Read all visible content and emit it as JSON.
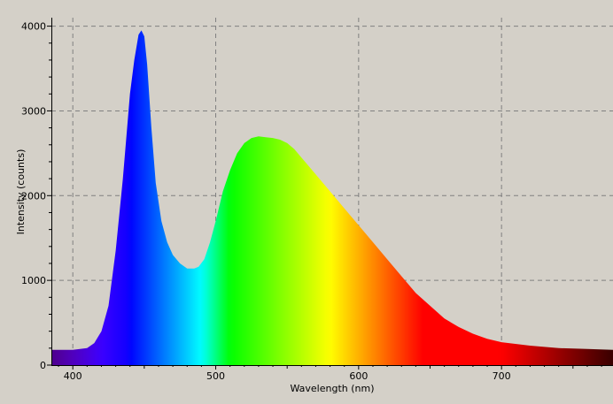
{
  "colors": {
    "background": "#d4d0c8",
    "axis": "#000000",
    "grid": "#808080"
  },
  "chart_data": {
    "type": "area",
    "title": "",
    "xlabel": "Wavelength (nm)",
    "ylabel": "Intensity (counts)",
    "xlim": [
      385,
      778
    ],
    "ylim": [
      0,
      4100
    ],
    "xticks": [
      400,
      500,
      600,
      700
    ],
    "yticks": [
      0,
      1000,
      2000,
      3000,
      4000
    ],
    "grid": true,
    "fill": "spectral wavelength color",
    "series": [
      {
        "x": [
          385,
          400,
          410,
          415,
          420,
          425,
          430,
          435,
          440,
          443,
          446,
          448,
          450,
          452,
          455,
          458,
          462,
          466,
          470,
          475,
          480,
          485,
          488,
          492,
          496,
          500,
          505,
          510,
          515,
          520,
          525,
          530,
          535,
          540,
          545,
          550,
          555,
          560,
          565,
          570,
          575,
          580,
          590,
          600,
          610,
          620,
          630,
          640,
          650,
          660,
          670,
          680,
          690,
          700,
          720,
          740,
          760,
          778
        ],
        "y": [
          180,
          180,
          200,
          260,
          400,
          700,
          1350,
          2200,
          3200,
          3600,
          3900,
          3950,
          3880,
          3550,
          2800,
          2150,
          1700,
          1450,
          1300,
          1200,
          1140,
          1140,
          1160,
          1250,
          1450,
          1700,
          2050,
          2300,
          2500,
          2620,
          2680,
          2700,
          2690,
          2680,
          2660,
          2620,
          2550,
          2450,
          2350,
          2250,
          2150,
          2050,
          1850,
          1650,
          1450,
          1250,
          1050,
          850,
          700,
          550,
          450,
          370,
          310,
          270,
          230,
          200,
          190,
          180
        ]
      }
    ]
  }
}
